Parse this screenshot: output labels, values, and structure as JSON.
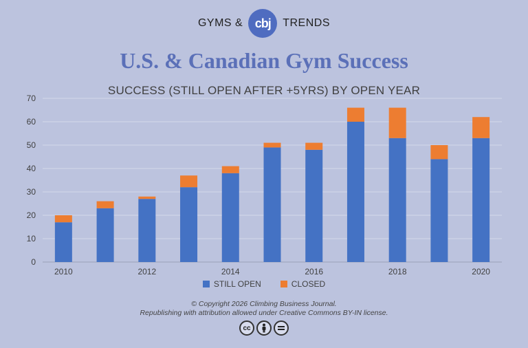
{
  "brand": {
    "left": "GYMS &",
    "logo": "cbj",
    "right": "TRENDS"
  },
  "main_title": "U.S. & Canadian Gym Success",
  "copyright": {
    "line1": "© Copyright 2026 Climbing Business Journal.",
    "line2": "Republishing with attribution allowed under Creative Commons BY-IN license."
  },
  "license_icons": [
    "cc",
    "by",
    "nd"
  ],
  "chart_data": {
    "type": "bar",
    "stacked": true,
    "title": "SUCCESS (STILL OPEN AFTER +5YRS) BY OPEN YEAR",
    "categories": [
      "2010",
      "2011",
      "2012",
      "2013",
      "2014",
      "2015",
      "2016",
      "2017",
      "2018",
      "2019",
      "2020"
    ],
    "x_tick_labels": [
      "2010",
      "",
      "2012",
      "",
      "2014",
      "",
      "2016",
      "",
      "2018",
      "",
      "2020"
    ],
    "series": [
      {
        "name": "STILL OPEN",
        "color": "#4472c4",
        "values": [
          17,
          23,
          27,
          32,
          38,
          49,
          48,
          60,
          53,
          44,
          53
        ]
      },
      {
        "name": "CLOSED",
        "color": "#ed7d31",
        "values": [
          3,
          3,
          1,
          5,
          3,
          2,
          3,
          6,
          13,
          6,
          9
        ]
      }
    ],
    "ylim": [
      0,
      70
    ],
    "y_ticks": [
      0,
      10,
      20,
      30,
      40,
      50,
      60,
      70
    ],
    "grid": true,
    "legend": "bottom"
  }
}
